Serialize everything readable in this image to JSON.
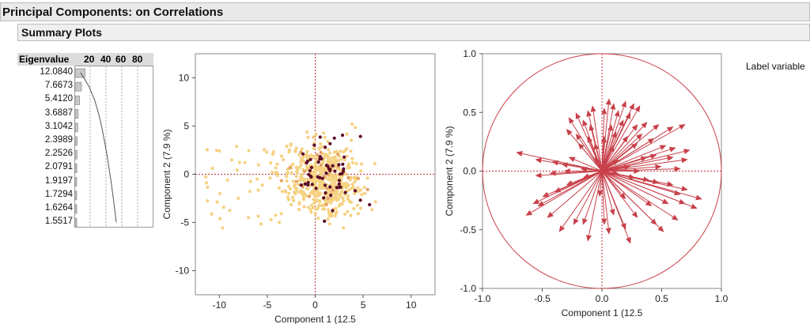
{
  "report": {
    "title": "Principal Components: on Correlations",
    "subtitle": "Summary Plots",
    "label_variable_text": "Label variable"
  },
  "colors": {
    "header_bg": "#e9e9e9",
    "axis_ref": "#c0323c",
    "point_light": "#f5d282",
    "point_dark": "#5c0a28",
    "arrow": "#c8404a"
  },
  "chart_data": [
    {
      "type": "bar",
      "header": "Eigenvalue",
      "axis_ticks": [
        "20",
        "40",
        "60",
        "80"
      ],
      "values": [
        12.084,
        7.6673,
        5.412,
        3.6887,
        3.1042,
        2.3989,
        2.2526,
        2.0791,
        1.9197,
        1.7294,
        1.6264,
        1.5517
      ],
      "labels": [
        "12.0840",
        "7.6673",
        "5.4120",
        "3.6887",
        "3.1042",
        "2.3989",
        "2.2526",
        "2.0791",
        "1.9197",
        "1.7294",
        "1.6264",
        "1.5517"
      ],
      "cumulative_percent": [
        12.5,
        20.5,
        26.1,
        29.9,
        33.1,
        35.6,
        38.0,
        40.1,
        42.1,
        43.9,
        45.6,
        47.2
      ],
      "xlim": [
        0,
        100
      ]
    },
    {
      "type": "scatter",
      "xlabel": "Component 1  (12.5 ",
      "ylabel": "Component 2  (7.9 %)",
      "xlim": [
        -12.5,
        12.5
      ],
      "ylim": [
        -12.5,
        12.5
      ],
      "xticks": [
        -10,
        -5,
        0,
        5,
        10
      ],
      "yticks": [
        -10,
        -5,
        0,
        5,
        10
      ],
      "series": [
        {
          "color": "#f5d282",
          "count": 560
        },
        {
          "color": "#e2a064",
          "count": 25
        },
        {
          "color": "#5c0a28",
          "count": 62
        }
      ]
    },
    {
      "type": "scatter",
      "xlabel": "Component 1  (12.5 ",
      "ylabel": "Component 2  (7.9 %)",
      "xlim": [
        -1.0,
        1.0
      ],
      "ylim": [
        -1.0,
        1.0
      ],
      "xticks": [
        -1.0,
        -0.5,
        0.0,
        0.5,
        1.0
      ],
      "yticks": [
        -1.0,
        -0.5,
        0.0,
        0.5,
        1.0
      ],
      "xtick_labels": [
        "-1.0",
        "-0.5",
        "0.0",
        "0.5",
        "1.0"
      ],
      "ytick_labels": [
        "-1.0",
        "-0.5",
        "0.0",
        "0.5",
        "1.0"
      ],
      "unit_circle": true,
      "loadings": [
        [
          0.06,
          0.62
        ],
        [
          0.1,
          0.58
        ],
        [
          0.2,
          0.6
        ],
        [
          0.27,
          0.58
        ],
        [
          0.32,
          0.56
        ],
        [
          -0.08,
          0.56
        ],
        [
          -0.12,
          0.52
        ],
        [
          0.02,
          0.54
        ],
        [
          0.14,
          0.52
        ],
        [
          0.24,
          0.5
        ],
        [
          -0.22,
          0.5
        ],
        [
          -0.28,
          0.46
        ],
        [
          -0.16,
          0.44
        ],
        [
          0.18,
          0.44
        ],
        [
          0.3,
          0.4
        ],
        [
          0.38,
          0.42
        ],
        [
          0.48,
          0.4
        ],
        [
          0.6,
          0.38
        ],
        [
          0.7,
          0.4
        ],
        [
          -0.1,
          0.4
        ],
        [
          0.08,
          0.4
        ],
        [
          -0.3,
          0.36
        ],
        [
          -0.22,
          0.32
        ],
        [
          0.12,
          0.34
        ],
        [
          0.22,
          0.3
        ],
        [
          0.34,
          0.32
        ],
        [
          0.44,
          0.28
        ],
        [
          -0.12,
          0.3
        ],
        [
          0.02,
          0.3
        ],
        [
          -0.06,
          0.24
        ],
        [
          0.3,
          0.24
        ],
        [
          0.54,
          0.22
        ],
        [
          -0.2,
          0.24
        ],
        [
          0.1,
          0.22
        ],
        [
          -0.72,
          0.16
        ],
        [
          -0.56,
          0.1
        ],
        [
          -0.42,
          0.08
        ],
        [
          -0.34,
          0.06
        ],
        [
          -0.28,
          0.12
        ],
        [
          0.46,
          0.14
        ],
        [
          0.6,
          0.12
        ],
        [
          0.72,
          0.1
        ],
        [
          0.62,
          0.2
        ],
        [
          0.74,
          0.18
        ],
        [
          0.38,
          0.12
        ],
        [
          0.5,
          0.04
        ],
        [
          0.66,
          0.02
        ],
        [
          0.24,
          0.04
        ],
        [
          0.32,
          0.0
        ],
        [
          0.14,
          0.1
        ],
        [
          -0.06,
          0.12
        ],
        [
          -0.18,
          0.02
        ],
        [
          -0.32,
          0.0
        ],
        [
          -0.44,
          -0.02
        ],
        [
          -0.56,
          -0.04
        ],
        [
          0.14,
          -0.02
        ],
        [
          0.28,
          -0.06
        ],
        [
          0.4,
          -0.08
        ],
        [
          0.48,
          -0.1
        ],
        [
          0.6,
          -0.12
        ],
        [
          0.72,
          -0.16
        ],
        [
          0.84,
          -0.24
        ],
        [
          0.66,
          -0.2
        ],
        [
          0.8,
          -0.32
        ],
        [
          -0.16,
          -0.06
        ],
        [
          -0.3,
          -0.12
        ],
        [
          -0.4,
          -0.18
        ],
        [
          -0.5,
          -0.22
        ],
        [
          -0.58,
          -0.28
        ],
        [
          -0.64,
          -0.38
        ],
        [
          -0.16,
          -0.46
        ],
        [
          -0.54,
          -0.3
        ],
        [
          -0.46,
          -0.4
        ],
        [
          -0.36,
          -0.52
        ],
        [
          -0.24,
          -0.46
        ],
        [
          0.1,
          -0.38
        ],
        [
          0.02,
          -0.46
        ],
        [
          0.2,
          -0.5
        ],
        [
          0.3,
          -0.4
        ],
        [
          0.46,
          -0.46
        ],
        [
          0.52,
          -0.52
        ],
        [
          0.64,
          -0.42
        ],
        [
          0.2,
          -0.24
        ],
        [
          0.42,
          -0.3
        ],
        [
          -0.12,
          -0.6
        ],
        [
          0.24,
          -0.62
        ],
        [
          0.06,
          -0.54
        ],
        [
          -0.02,
          -0.22
        ],
        [
          0.56,
          -0.28
        ],
        [
          0.7,
          -0.28
        ]
      ]
    }
  ]
}
